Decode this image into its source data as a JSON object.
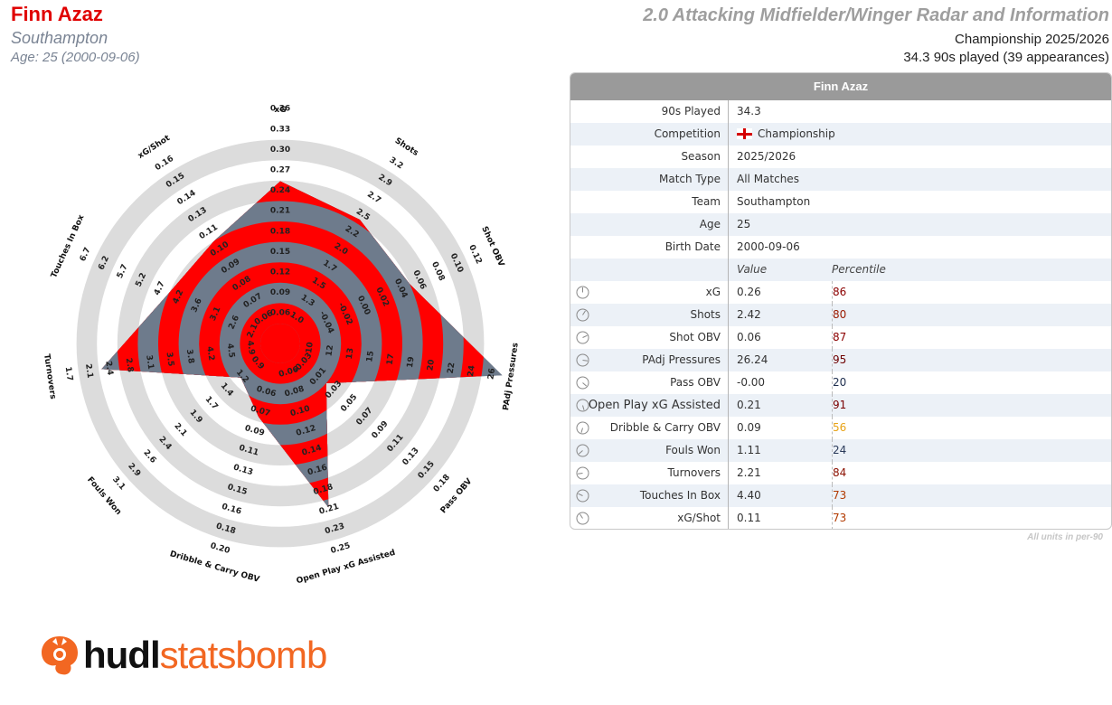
{
  "header": {
    "player_name": "Finn Azaz",
    "team": "Southampton",
    "age_line": "Age: 25 (2000-09-06)",
    "title": "2.0 Attacking Midfielder/Winger Radar and Information",
    "competition_line": "Championship 2025/2026",
    "played_line": "34.3 90s played (39 appearances)"
  },
  "colors": {
    "band_red": "#ff0000",
    "radar_slate": "#6e7b8c",
    "ring_grey": "#dcdcdc",
    "name_red": "#e00000",
    "pct_red": "#8b0000",
    "pct_orange": "#e8a317",
    "pct_navy": "#1f2f4f"
  },
  "chart_data": {
    "type": "radar",
    "title": "",
    "axes": [
      {
        "name": "xG",
        "value": 0.26,
        "ticks": [
          "0.06",
          "0.09",
          "0.12",
          "0.15",
          "0.18",
          "0.21",
          "0.24",
          "0.27",
          "0.30",
          "0.33",
          "0.36"
        ],
        "range": [
          0.03,
          0.36
        ]
      },
      {
        "name": "Shots",
        "value": 2.42,
        "ticks": [
          "1.0",
          "1.3",
          "1.5",
          "1.7",
          "2.0",
          "2.2",
          "2.5",
          "2.7",
          "2.9",
          "3.2"
        ],
        "range": [
          0.8,
          3.4
        ]
      },
      {
        "name": "Shot OBV",
        "value": 0.06,
        "ticks": [
          "-0.04",
          "-0.02",
          "0.00",
          "0.02",
          "0.04",
          "0.06",
          "0.08",
          "0.10",
          "0.12"
        ],
        "range": [
          -0.06,
          0.14
        ]
      },
      {
        "name": "PAdj Pressures",
        "value": 26.24,
        "ticks": [
          "10",
          "12",
          "13",
          "15",
          "17",
          "19",
          "20",
          "22",
          "24",
          "26"
        ],
        "range": [
          8,
          26
        ]
      },
      {
        "name": "Pass OBV",
        "value": -0.0,
        "ticks": [
          "-0.03",
          "0.01",
          "0.03",
          "0.05",
          "0.07",
          "0.09",
          "0.11",
          "0.13",
          "0.15",
          "0.18"
        ],
        "range": [
          -0.05,
          0.2
        ]
      },
      {
        "name": "Open Play xG Assisted",
        "value": 0.21,
        "ticks": [
          "0.06",
          "0.08",
          "0.10",
          "0.12",
          "0.14",
          "0.16",
          "0.18",
          "0.21",
          "0.23",
          "0.25"
        ],
        "range": [
          0.04,
          0.27
        ]
      },
      {
        "name": "Dribble & Carry OBV",
        "value": 0.09,
        "ticks": [
          "0.06",
          "0.07",
          "0.09",
          "0.11",
          "0.13",
          "0.15",
          "0.16",
          "0.18",
          "0.20"
        ],
        "range": [
          0.04,
          0.22
        ]
      },
      {
        "name": "Fouls Won",
        "value": 1.11,
        "ticks": [
          "0.9",
          "1.2",
          "1.4",
          "1.7",
          "1.9",
          "2.1",
          "2.4",
          "2.6",
          "2.9",
          "3.1"
        ],
        "range": [
          0.7,
          3.3
        ]
      },
      {
        "name": "Turnovers",
        "value": 2.21,
        "ticks": [
          "4.9",
          "4.5",
          "4.2",
          "3.8",
          "3.5",
          "3.1",
          "2.8",
          "2.4",
          "2.1",
          "1.7"
        ],
        "range": [
          5.2,
          1.4
        ]
      },
      {
        "name": "Touches In Box",
        "value": 4.4,
        "ticks": [
          "2.1",
          "2.6",
          "3.1",
          "3.6",
          "4.2",
          "4.7",
          "5.2",
          "5.7",
          "6.2",
          "6.7"
        ],
        "range": [
          1.6,
          7.2
        ]
      },
      {
        "name": "xG/Shot",
        "value": 0.11,
        "ticks": [
          "0.06",
          "0.07",
          "0.08",
          "0.09",
          "0.10",
          "0.11",
          "0.13",
          "0.14",
          "0.15",
          "0.16"
        ],
        "range": [
          0.05,
          0.17
        ]
      }
    ],
    "grid": true,
    "legend": "none"
  },
  "info_table": {
    "header": "Finn Azaz",
    "rows": [
      {
        "label": "90s Played",
        "value": "34.3"
      },
      {
        "label": "Competition",
        "value": "Championship",
        "flag": "england"
      },
      {
        "label": "Season",
        "value": "2025/2026"
      },
      {
        "label": "Match Type",
        "value": "All Matches"
      },
      {
        "label": "Team",
        "value": "Southampton"
      },
      {
        "label": "Age",
        "value": "25"
      },
      {
        "label": "Birth Date",
        "value": "2000-09-06"
      }
    ],
    "value_header": "Value",
    "percentile_header": "Percentile",
    "metrics": [
      {
        "label": "xG",
        "value": "0.26",
        "percentile": "86",
        "pct_color": "#8b0000"
      },
      {
        "label": "Shots",
        "value": "2.42",
        "percentile": "80",
        "pct_color": "#9b1a00"
      },
      {
        "label": "Shot OBV",
        "value": "0.06",
        "percentile": "87",
        "pct_color": "#8b0000"
      },
      {
        "label": "PAdj Pressures",
        "value": "26.24",
        "percentile": "95",
        "pct_color": "#6e0000"
      },
      {
        "label": "Pass OBV",
        "value": "-0.00",
        "percentile": "20",
        "pct_color": "#1f2f4f"
      },
      {
        "label": "Open Play xG Assisted",
        "value": "0.21",
        "percentile": "91",
        "pct_color": "#7a0000"
      },
      {
        "label": "Dribble & Carry OBV",
        "value": "0.09",
        "percentile": "56",
        "pct_color": "#e8a317"
      },
      {
        "label": "Fouls Won",
        "value": "1.11",
        "percentile": "24",
        "pct_color": "#2a3a5a"
      },
      {
        "label": "Turnovers",
        "value": "2.21",
        "percentile": "84",
        "pct_color": "#8b1000"
      },
      {
        "label": "Touches In Box",
        "value": "4.40",
        "percentile": "73",
        "pct_color": "#b23a00"
      },
      {
        "label": "xG/Shot",
        "value": "0.11",
        "percentile": "73",
        "pct_color": "#b23a00"
      }
    ],
    "footnote": "All units in per-90"
  },
  "logo": {
    "brand_left": "hudl",
    "brand_right": "statsbomb"
  }
}
